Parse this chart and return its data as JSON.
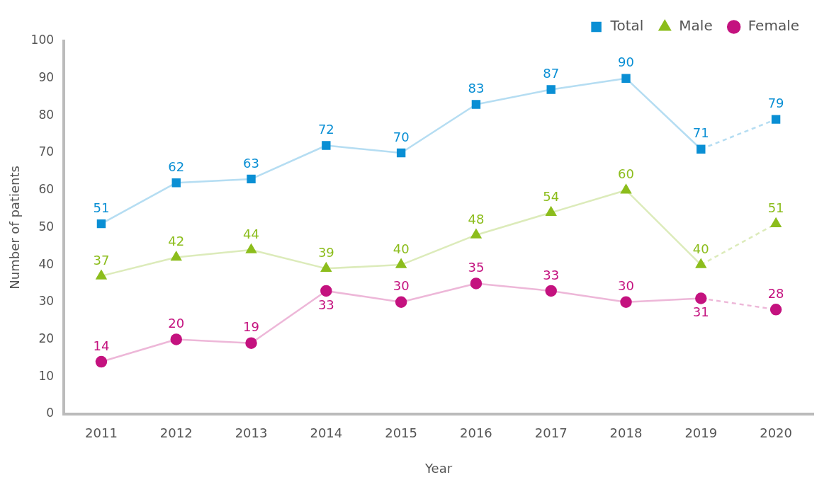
{
  "chart_data": {
    "type": "line",
    "xlabel": "Year",
    "ylabel": "Number of patients",
    "categories": [
      "2011",
      "2012",
      "2013",
      "2014",
      "2015",
      "2016",
      "2017",
      "2018",
      "2019",
      "2020"
    ],
    "series": [
      {
        "name": "Total",
        "color": "#0a8fd4",
        "marker": "square",
        "values": [
          51,
          62,
          63,
          72,
          70,
          83,
          87,
          90,
          71,
          79
        ]
      },
      {
        "name": "Male",
        "color": "#8cbd1c",
        "marker": "triangle",
        "values": [
          37,
          42,
          44,
          39,
          40,
          48,
          54,
          60,
          40,
          51
        ]
      },
      {
        "name": "Female",
        "color": "#c4127f",
        "marker": "circle",
        "values": [
          14,
          20,
          19,
          33,
          30,
          35,
          33,
          30,
          31,
          28
        ]
      }
    ],
    "ylim": [
      0,
      100
    ],
    "yticks": [
      0,
      10,
      20,
      30,
      40,
      50,
      60,
      70,
      80,
      90,
      100
    ],
    "data_labels": true,
    "legend": "top right",
    "grid": false,
    "line_style": "solid"
  }
}
